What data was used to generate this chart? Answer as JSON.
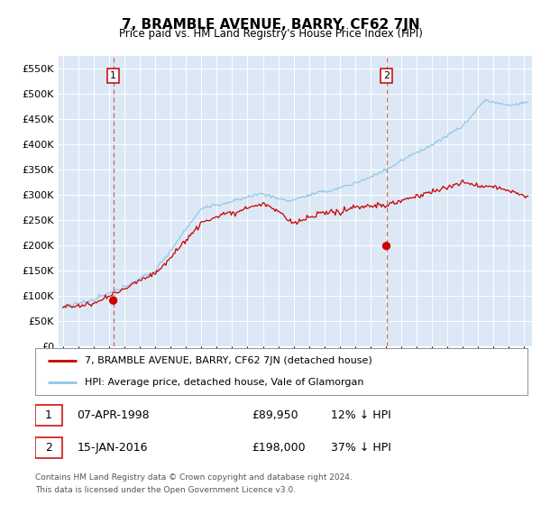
{
  "title": "7, BRAMBLE AVENUE, BARRY, CF62 7JN",
  "subtitle": "Price paid vs. HM Land Registry's House Price Index (HPI)",
  "xlim": [
    1994.7,
    2025.5
  ],
  "ylim": [
    0,
    575000
  ],
  "yticks": [
    0,
    50000,
    100000,
    150000,
    200000,
    250000,
    300000,
    350000,
    400000,
    450000,
    500000,
    550000
  ],
  "ytick_labels": [
    "£0",
    "£50K",
    "£100K",
    "£150K",
    "£200K",
    "£250K",
    "£300K",
    "£350K",
    "£400K",
    "£450K",
    "£500K",
    "£550K"
  ],
  "xticks": [
    1995,
    1996,
    1997,
    1998,
    1999,
    2000,
    2001,
    2002,
    2003,
    2004,
    2005,
    2006,
    2007,
    2008,
    2009,
    2010,
    2011,
    2012,
    2013,
    2014,
    2015,
    2016,
    2017,
    2018,
    2019,
    2020,
    2021,
    2022,
    2023,
    2024,
    2025
  ],
  "sale1_x": 1998.27,
  "sale1_y": 89950,
  "sale1_label": "1",
  "sale1_date": "07-APR-1998",
  "sale1_price": "£89,950",
  "sale1_hpi": "12% ↓ HPI",
  "sale2_x": 2016.04,
  "sale2_y": 198000,
  "sale2_label": "2",
  "sale2_date": "15-JAN-2016",
  "sale2_price": "£198,000",
  "sale2_hpi": "37% ↓ HPI",
  "hpi_color": "#8ec6e8",
  "price_color": "#cc0000",
  "vline_color": "#cc6666",
  "vline1_style": "dashed",
  "vline2_style": "dashed",
  "bg_color": "#dce8f5",
  "grid_color": "#ffffff",
  "legend_entry1": "7, BRAMBLE AVENUE, BARRY, CF62 7JN (detached house)",
  "legend_entry2": "HPI: Average price, detached house, Vale of Glamorgan",
  "footer1": "Contains HM Land Registry data © Crown copyright and database right 2024.",
  "footer2": "This data is licensed under the Open Government Licence v3.0."
}
